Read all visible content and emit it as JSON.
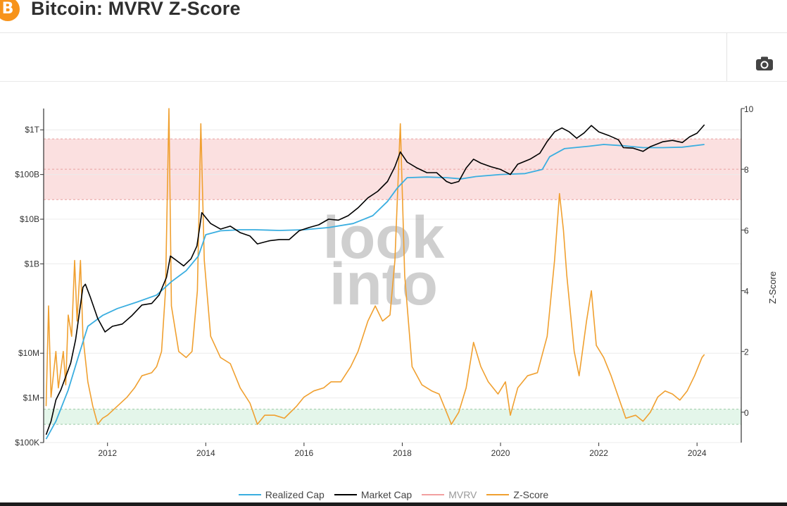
{
  "header": {
    "title": "Bitcoin: MVRV Z-Score",
    "logo_glyph": "B",
    "logo_icon": "bitcoin-logo-icon"
  },
  "toolbar": {
    "camera_icon": "camera-icon"
  },
  "watermark": [
    "look",
    "into"
  ],
  "colors": {
    "realized_cap": "#3aaee0",
    "market_cap": "#000000",
    "mvrv": "#f2a0a0",
    "z_score": "#f0a030",
    "high_zone": "#fbe0e0",
    "low_zone": "#e4f6ea"
  },
  "chart_data": {
    "type": "line",
    "title": "Bitcoin: MVRV Z-Score",
    "x_ticks": [
      "2012",
      "2014",
      "2016",
      "2018",
      "2020",
      "2022",
      "2024"
    ],
    "xlim": [
      2010.7,
      2024.9
    ],
    "y_left": {
      "scale": "log",
      "range": [
        100000,
        3000000000000
      ],
      "ticks": [
        {
          "value": 1000000000000,
          "label": "$1T"
        },
        {
          "value": 100000000000,
          "label": "$100B"
        },
        {
          "value": 10000000000,
          "label": "$10B"
        },
        {
          "value": 1000000000,
          "label": "$1B"
        },
        {
          "value": 10000000,
          "label": "$10M"
        },
        {
          "value": 1000000,
          "label": "$1M"
        },
        {
          "value": 100000,
          "label": "$100K"
        }
      ]
    },
    "y_right": {
      "label": "Z-Score",
      "range": [
        -1,
        10
      ],
      "ticks": [
        0,
        2,
        4,
        6,
        8,
        10
      ]
    },
    "zones": {
      "high": [
        7,
        9
      ],
      "low": [
        -0.4,
        0.1
      ]
    },
    "legend": [
      "Realized Cap",
      "Market Cap",
      "MVRV",
      "Z-Score"
    ],
    "series": [
      {
        "name": "Market Cap",
        "points": [
          [
            2010.75,
            150000
          ],
          [
            2010.85,
            300000
          ],
          [
            2010.95,
            900000
          ],
          [
            2011.05,
            1500000
          ],
          [
            2011.15,
            3000000
          ],
          [
            2011.25,
            6000000
          ],
          [
            2011.35,
            20000000
          ],
          [
            2011.45,
            120000000
          ],
          [
            2011.5,
            300000000
          ],
          [
            2011.55,
            350000000
          ],
          [
            2011.65,
            180000000
          ],
          [
            2011.8,
            60000000
          ],
          [
            2011.95,
            30000000
          ],
          [
            2012.1,
            40000000
          ],
          [
            2012.3,
            45000000
          ],
          [
            2012.5,
            70000000
          ],
          [
            2012.7,
            120000000
          ],
          [
            2012.9,
            130000000
          ],
          [
            2013.05,
            200000000
          ],
          [
            2013.2,
            500000000
          ],
          [
            2013.28,
            1500000000
          ],
          [
            2013.4,
            1200000000
          ],
          [
            2013.55,
            900000000
          ],
          [
            2013.7,
            1300000000
          ],
          [
            2013.82,
            2500000000
          ],
          [
            2013.92,
            14000000000
          ],
          [
            2014.1,
            8000000000
          ],
          [
            2014.3,
            6000000000
          ],
          [
            2014.5,
            7000000000
          ],
          [
            2014.7,
            5000000000
          ],
          [
            2014.9,
            4200000000
          ],
          [
            2015.05,
            2800000000
          ],
          [
            2015.3,
            3300000000
          ],
          [
            2015.5,
            3500000000
          ],
          [
            2015.7,
            3500000000
          ],
          [
            2015.9,
            5500000000
          ],
          [
            2016.1,
            6500000000
          ],
          [
            2016.3,
            7500000000
          ],
          [
            2016.5,
            10000000000
          ],
          [
            2016.7,
            9500000000
          ],
          [
            2016.9,
            12000000000
          ],
          [
            2017.1,
            18000000000
          ],
          [
            2017.3,
            30000000000
          ],
          [
            2017.5,
            42000000000
          ],
          [
            2017.7,
            70000000000
          ],
          [
            2017.85,
            150000000000
          ],
          [
            2017.96,
            320000000000
          ],
          [
            2018.1,
            190000000000
          ],
          [
            2018.3,
            140000000000
          ],
          [
            2018.5,
            110000000000
          ],
          [
            2018.7,
            110000000000
          ],
          [
            2018.9,
            70000000000
          ],
          [
            2019.0,
            63000000000
          ],
          [
            2019.15,
            70000000000
          ],
          [
            2019.3,
            140000000000
          ],
          [
            2019.45,
            220000000000
          ],
          [
            2019.6,
            180000000000
          ],
          [
            2019.8,
            150000000000
          ],
          [
            2020.0,
            130000000000
          ],
          [
            2020.2,
            100000000000
          ],
          [
            2020.35,
            170000000000
          ],
          [
            2020.6,
            220000000000
          ],
          [
            2020.8,
            300000000000
          ],
          [
            2020.95,
            550000000000
          ],
          [
            2021.1,
            900000000000
          ],
          [
            2021.25,
            1100000000000
          ],
          [
            2021.4,
            900000000000
          ],
          [
            2021.55,
            650000000000
          ],
          [
            2021.7,
            850000000000
          ],
          [
            2021.85,
            1250000000000
          ],
          [
            2022.0,
            900000000000
          ],
          [
            2022.2,
            750000000000
          ],
          [
            2022.4,
            600000000000
          ],
          [
            2022.5,
            400000000000
          ],
          [
            2022.7,
            390000000000
          ],
          [
            2022.9,
            330000000000
          ],
          [
            2023.05,
            420000000000
          ],
          [
            2023.3,
            540000000000
          ],
          [
            2023.5,
            580000000000
          ],
          [
            2023.7,
            520000000000
          ],
          [
            2023.85,
            700000000000
          ],
          [
            2024.0,
            840000000000
          ],
          [
            2024.15,
            1300000000000
          ]
        ]
      },
      {
        "name": "Realized Cap",
        "points": [
          [
            2010.75,
            120000
          ],
          [
            2010.95,
            300000
          ],
          [
            2011.2,
            1500000
          ],
          [
            2011.4,
            8000000
          ],
          [
            2011.6,
            40000000
          ],
          [
            2011.9,
            70000000
          ],
          [
            2012.2,
            100000000
          ],
          [
            2012.6,
            140000000
          ],
          [
            2013.0,
            200000000
          ],
          [
            2013.3,
            400000000
          ],
          [
            2013.6,
            700000000
          ],
          [
            2013.85,
            1500000000
          ],
          [
            2014.0,
            4500000000
          ],
          [
            2014.3,
            5500000000
          ],
          [
            2014.7,
            5800000000
          ],
          [
            2015.0,
            5800000000
          ],
          [
            2015.5,
            5600000000
          ],
          [
            2016.0,
            5800000000
          ],
          [
            2016.5,
            6500000000
          ],
          [
            2017.0,
            8000000000
          ],
          [
            2017.4,
            12000000000
          ],
          [
            2017.7,
            25000000000
          ],
          [
            2017.9,
            50000000000
          ],
          [
            2018.1,
            85000000000
          ],
          [
            2018.5,
            88000000000
          ],
          [
            2018.9,
            85000000000
          ],
          [
            2019.2,
            80000000000
          ],
          [
            2019.5,
            90000000000
          ],
          [
            2020.0,
            100000000000
          ],
          [
            2020.5,
            105000000000
          ],
          [
            2020.85,
            130000000000
          ],
          [
            2021.0,
            250000000000
          ],
          [
            2021.3,
            380000000000
          ],
          [
            2021.8,
            430000000000
          ],
          [
            2022.1,
            470000000000
          ],
          [
            2022.5,
            440000000000
          ],
          [
            2022.9,
            400000000000
          ],
          [
            2023.3,
            400000000000
          ],
          [
            2023.7,
            410000000000
          ],
          [
            2024.15,
            470000000000
          ]
        ]
      },
      {
        "name": "Z-Score",
        "points": [
          [
            2010.75,
            0.2
          ],
          [
            2010.8,
            3.5
          ],
          [
            2010.85,
            0.5
          ],
          [
            2010.95,
            2.0
          ],
          [
            2011.0,
            0.8
          ],
          [
            2011.1,
            2.0
          ],
          [
            2011.15,
            0.9
          ],
          [
            2011.2,
            3.2
          ],
          [
            2011.27,
            2.5
          ],
          [
            2011.33,
            5.0
          ],
          [
            2011.38,
            3.0
          ],
          [
            2011.45,
            5.0
          ],
          [
            2011.5,
            2.5
          ],
          [
            2011.6,
            1.0
          ],
          [
            2011.7,
            0.2
          ],
          [
            2011.8,
            -0.4
          ],
          [
            2011.9,
            -0.2
          ],
          [
            2012.0,
            -0.1
          ],
          [
            2012.2,
            0.2
          ],
          [
            2012.4,
            0.5
          ],
          [
            2012.55,
            0.8
          ],
          [
            2012.7,
            1.2
          ],
          [
            2012.9,
            1.3
          ],
          [
            2013.0,
            1.5
          ],
          [
            2013.1,
            2.0
          ],
          [
            2013.18,
            4.0
          ],
          [
            2013.25,
            10.0
          ],
          [
            2013.3,
            3.5
          ],
          [
            2013.45,
            2.0
          ],
          [
            2013.6,
            1.8
          ],
          [
            2013.72,
            2.0
          ],
          [
            2013.83,
            4.0
          ],
          [
            2013.9,
            9.5
          ],
          [
            2013.97,
            5.0
          ],
          [
            2014.1,
            2.5
          ],
          [
            2014.3,
            1.8
          ],
          [
            2014.5,
            1.6
          ],
          [
            2014.7,
            0.8
          ],
          [
            2014.9,
            0.3
          ],
          [
            2015.05,
            -0.4
          ],
          [
            2015.2,
            -0.1
          ],
          [
            2015.4,
            -0.1
          ],
          [
            2015.6,
            -0.2
          ],
          [
            2015.85,
            0.2
          ],
          [
            2016.0,
            0.5
          ],
          [
            2016.2,
            0.7
          ],
          [
            2016.4,
            0.8
          ],
          [
            2016.55,
            1.0
          ],
          [
            2016.75,
            1.0
          ],
          [
            2016.95,
            1.5
          ],
          [
            2017.1,
            2.0
          ],
          [
            2017.3,
            3.0
          ],
          [
            2017.45,
            3.5
          ],
          [
            2017.6,
            3.0
          ],
          [
            2017.75,
            3.2
          ],
          [
            2017.85,
            5.0
          ],
          [
            2017.96,
            9.5
          ],
          [
            2018.05,
            4.5
          ],
          [
            2018.2,
            1.5
          ],
          [
            2018.4,
            0.9
          ],
          [
            2018.6,
            0.7
          ],
          [
            2018.75,
            0.6
          ],
          [
            2018.9,
            0.0
          ],
          [
            2019.0,
            -0.4
          ],
          [
            2019.15,
            0.0
          ],
          [
            2019.3,
            0.8
          ],
          [
            2019.45,
            2.3
          ],
          [
            2019.6,
            1.5
          ],
          [
            2019.75,
            1.0
          ],
          [
            2019.95,
            0.6
          ],
          [
            2020.1,
            1.0
          ],
          [
            2020.2,
            -0.1
          ],
          [
            2020.35,
            0.8
          ],
          [
            2020.55,
            1.2
          ],
          [
            2020.75,
            1.3
          ],
          [
            2020.95,
            2.5
          ],
          [
            2021.1,
            5.0
          ],
          [
            2021.2,
            7.2
          ],
          [
            2021.28,
            6.0
          ],
          [
            2021.35,
            4.5
          ],
          [
            2021.5,
            2.0
          ],
          [
            2021.6,
            1.2
          ],
          [
            2021.75,
            3.0
          ],
          [
            2021.85,
            4.0
          ],
          [
            2021.95,
            2.2
          ],
          [
            2022.1,
            1.8
          ],
          [
            2022.25,
            1.2
          ],
          [
            2022.4,
            0.5
          ],
          [
            2022.55,
            -0.2
          ],
          [
            2022.75,
            -0.1
          ],
          [
            2022.9,
            -0.3
          ],
          [
            2023.05,
            0.0
          ],
          [
            2023.2,
            0.5
          ],
          [
            2023.35,
            0.7
          ],
          [
            2023.5,
            0.6
          ],
          [
            2023.65,
            0.4
          ],
          [
            2023.8,
            0.7
          ],
          [
            2023.95,
            1.2
          ],
          [
            2024.1,
            1.8
          ],
          [
            2024.15,
            1.9
          ]
        ]
      }
    ]
  }
}
